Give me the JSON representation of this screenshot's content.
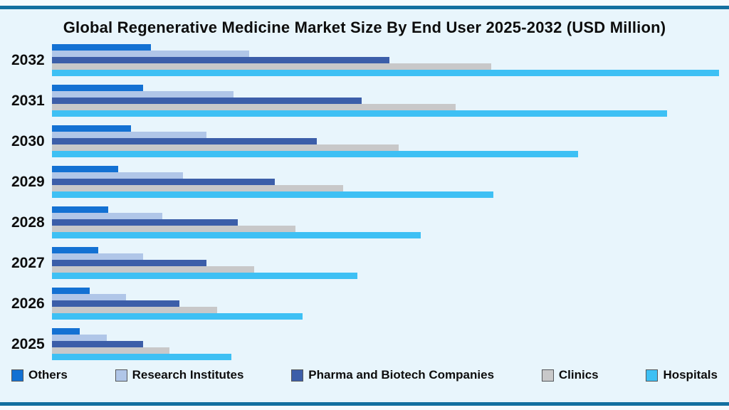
{
  "chart_data": {
    "type": "bar",
    "orientation": "horizontal",
    "title": "Global Regenerative Medicine Market Size By End User 2025-2032 (USD Million)",
    "categories": [
      "2032",
      "2031",
      "2030",
      "2029",
      "2028",
      "2027",
      "2026",
      "2025"
    ],
    "series": [
      {
        "name": "Others",
        "color": "#1371d3",
        "values": [
          14.8,
          13.7,
          11.8,
          9.9,
          8.4,
          6.9,
          5.7,
          4.2
        ]
      },
      {
        "name": "Research Institutes",
        "color": "#b0c6e8",
        "values": [
          29.6,
          27.2,
          23.2,
          19.6,
          16.5,
          13.7,
          11.1,
          8.2
        ]
      },
      {
        "name": "Pharma and Biotech Companies",
        "color": "#3c5ea9",
        "values": [
          50.6,
          46.4,
          39.7,
          33.4,
          27.9,
          23.2,
          19.1,
          13.7
        ]
      },
      {
        "name": "Clinics",
        "color": "#c8c8c9",
        "values": [
          65.9,
          60.5,
          52.0,
          43.6,
          36.5,
          30.3,
          24.8,
          17.6
        ]
      },
      {
        "name": "Hospitals",
        "color": "#3ec0f4",
        "values": [
          100,
          92.2,
          78.9,
          66.2,
          55.3,
          45.8,
          37.6,
          26.9
        ]
      }
    ],
    "values_unit": "relative bar length, percent of longest bar (no numeric axis shown in chart)",
    "xlim": [
      0,
      100
    ],
    "grid": false,
    "legend_position": "bottom",
    "bar_order_within_group": [
      "Others",
      "Research Institutes",
      "Pharma and Biotech Companies",
      "Clinics",
      "Hospitals"
    ]
  },
  "colors": {
    "background": "#e8f5fc",
    "frame_border": "#1470a0",
    "title_text": "#0d0d0d",
    "year_label_text": "#0d0d0d",
    "legend_text": "#0d0d0d",
    "legend_swatch_border": "#54565a"
  }
}
